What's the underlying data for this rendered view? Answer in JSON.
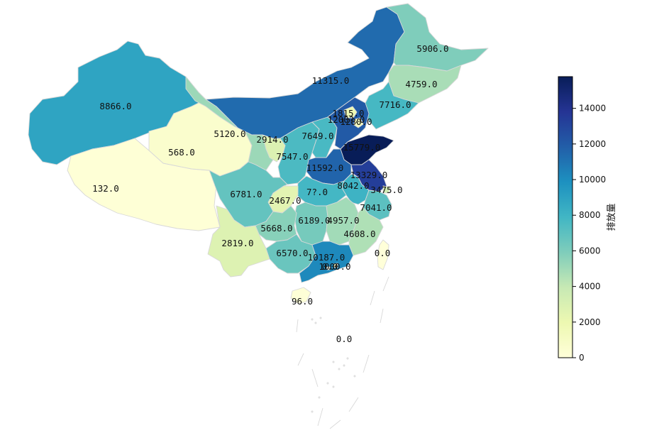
{
  "map": {
    "colorbar": {
      "label": "排放量",
      "min": 0,
      "max": 15779,
      "ticks": [
        "0",
        "2000",
        "4000",
        "6000",
        "8000",
        "10000",
        "12000",
        "14000"
      ],
      "colormap": "YlGnBu",
      "stops": [
        "#ffffd9",
        "#edf8b1",
        "#c7e9b4",
        "#7fcdbb",
        "#41b6c4",
        "#1d91c0",
        "#225ea8",
        "#253494",
        "#081d58"
      ]
    },
    "regions": [
      {
        "id": "xinjiang",
        "value": 8866,
        "label": "8866.0"
      },
      {
        "id": "tibet",
        "value": 132,
        "label": "132.0"
      },
      {
        "id": "qinghai",
        "value": 568,
        "label": "568.0"
      },
      {
        "id": "gansu",
        "value": 5120,
        "label": "5120.0"
      },
      {
        "id": "inner-mongolia",
        "value": 11315,
        "label": "11315.0"
      },
      {
        "id": "heilongjiang",
        "value": 5906,
        "label": "5906.0"
      },
      {
        "id": "jilin",
        "value": 4759,
        "label": "4759.0"
      },
      {
        "id": "liaoning",
        "value": 7716,
        "label": "7716.0"
      },
      {
        "id": "ningxia",
        "value": 2914,
        "label": "2914.0"
      },
      {
        "id": "shaanxi",
        "value": 7547,
        "label": "7547.0"
      },
      {
        "id": "shanxi",
        "value": 7649,
        "label": "7649.0"
      },
      {
        "id": "hebei",
        "value": 12000,
        "label": "1200?.0"
      },
      {
        "id": "beijing",
        "value": 1815,
        "label": "1815.0"
      },
      {
        "id": "tianjin",
        "value": 1280,
        "label": "1280.0"
      },
      {
        "id": "shandong",
        "value": 15779,
        "label": "15779.0"
      },
      {
        "id": "henan",
        "value": 11592,
        "label": "11592.0"
      },
      {
        "id": "jiangsu",
        "value": 13329,
        "label": "13329.0"
      },
      {
        "id": "shanghai",
        "value": 3475,
        "label": "3475.0"
      },
      {
        "id": "anhui",
        "value": 8042,
        "label": "8042.0"
      },
      {
        "id": "hubei",
        "value": 7800,
        "label": "7?.0"
      },
      {
        "id": "chongqing",
        "value": 2467,
        "label": "2467.0"
      },
      {
        "id": "sichuan",
        "value": 6781,
        "label": "6781.0"
      },
      {
        "id": "zhejiang",
        "value": 7041,
        "label": "7041.0"
      },
      {
        "id": "hunan",
        "value": 6189,
        "label": "6189.0"
      },
      {
        "id": "jiangxi",
        "value": 4957,
        "label": "4957.0"
      },
      {
        "id": "fujian",
        "value": 4608,
        "label": "4608.0"
      },
      {
        "id": "guizhou",
        "value": 5668,
        "label": "5668.0"
      },
      {
        "id": "yunnan",
        "value": 2819,
        "label": "2819.0"
      },
      {
        "id": "guangxi",
        "value": 6570,
        "label": "6570.0"
      },
      {
        "id": "guangdong",
        "value": 10187,
        "label": "10187.0"
      },
      {
        "id": "hongkong",
        "value": 1000,
        "label": "1000.0"
      },
      {
        "id": "macau",
        "value": 0,
        "label": "0.0"
      },
      {
        "id": "taiwan",
        "value": 0,
        "label": "0.0"
      },
      {
        "id": "hainan",
        "value": 96,
        "label": "96.0"
      },
      {
        "id": "south-sea",
        "value": 0,
        "label": "0.0"
      }
    ]
  }
}
